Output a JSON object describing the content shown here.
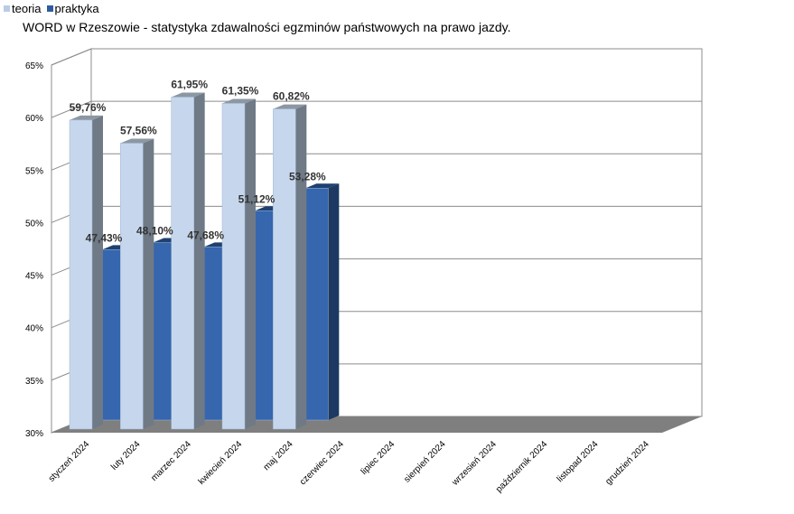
{
  "legend": [
    {
      "label": "teoria",
      "color": "#b8cce4"
    },
    {
      "label": "praktyka",
      "color": "#2e5ca0"
    }
  ],
  "chart_data": {
    "type": "bar",
    "title": "WORD w Rzeszowie - statystyka zdawalności egzminów państwowych na prawo jazdy.",
    "categories": [
      "styczeń 2024",
      "luty 2024",
      "marzec 2024",
      "kwiecień 2024",
      "maj 2024",
      "czerwiec 2024",
      "lipiec 2024",
      "sierpień 2024",
      "wrzesień 2024",
      "październik 2024",
      "listopad 2024",
      "grudzień 2024"
    ],
    "series": [
      {
        "name": "teoria",
        "values": [
          59.76,
          57.56,
          61.95,
          61.35,
          60.82,
          null,
          null,
          null,
          null,
          null,
          null,
          null
        ],
        "labels": [
          "59,76%",
          "57,56%",
          "61,95%",
          "61,35%",
          "60,82%"
        ],
        "color": "#b8cce4"
      },
      {
        "name": "praktyka",
        "values": [
          47.43,
          48.1,
          47.68,
          51.12,
          53.28,
          null,
          null,
          null,
          null,
          null,
          null,
          null
        ],
        "labels": [
          "47,43%",
          "48,10%",
          "47,68%",
          "51,12%",
          "53,28%"
        ],
        "color": "#2e5ca0"
      }
    ],
    "ylim": [
      30,
      65
    ],
    "yticks": [
      "30%",
      "35%",
      "40%",
      "45%",
      "50%",
      "55%",
      "60%",
      "65%"
    ],
    "grid": true,
    "legend_position": "top-left"
  }
}
